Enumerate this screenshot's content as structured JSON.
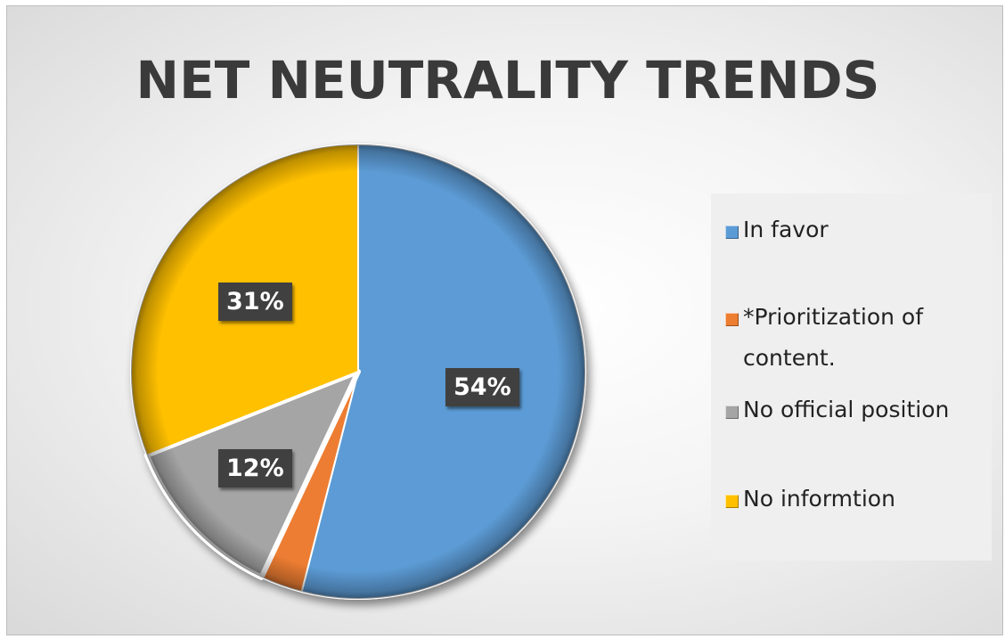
{
  "chart_data": {
    "type": "pie",
    "title": "NET NEUTRALITY TRENDS",
    "categories": [
      "In favor",
      "*Prioritization of content.",
      "No official position",
      "No informtion"
    ],
    "values": [
      54,
      3,
      12,
      31
    ],
    "data_labels": [
      "54%",
      "",
      "12%",
      "31%"
    ],
    "colors": [
      "#5b9bd5",
      "#ed7d31",
      "#a5a5a5",
      "#ffc000"
    ],
    "legend_position": "right",
    "start_angle_deg": 0,
    "direction": "clockwise"
  }
}
